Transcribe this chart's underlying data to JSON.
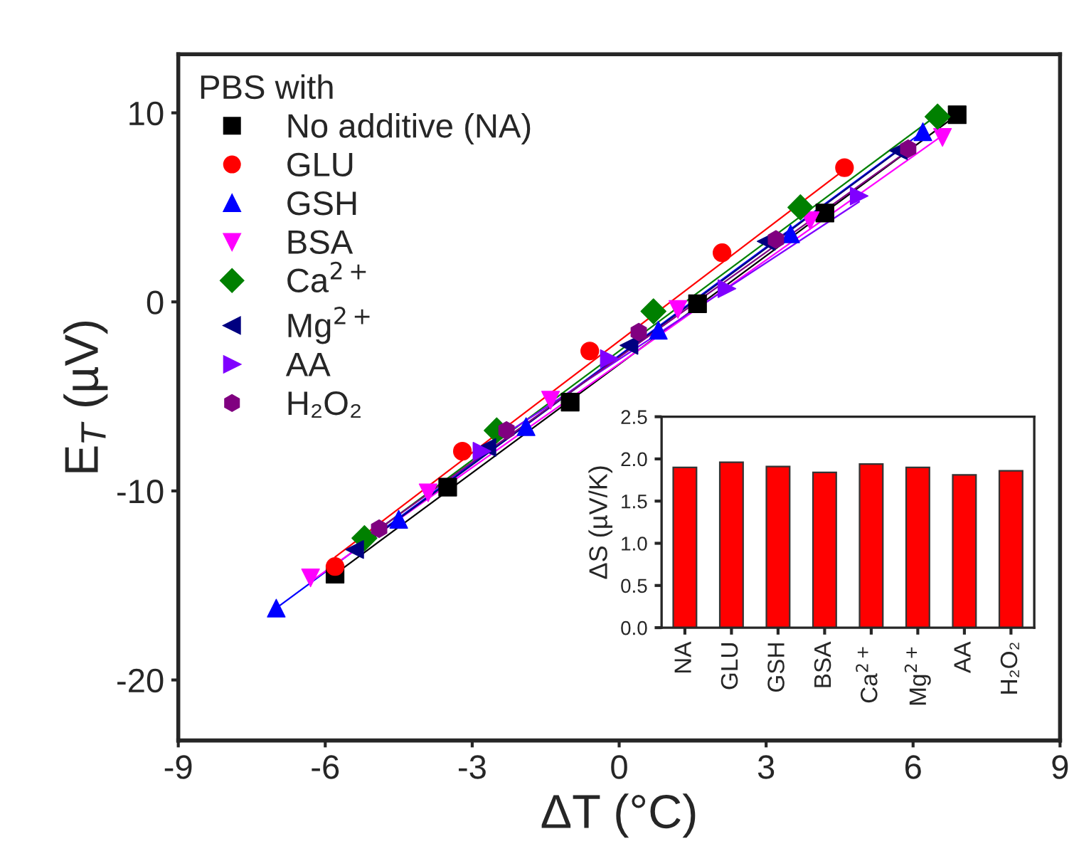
{
  "chart_data": [
    {
      "type": "scatter",
      "xlabel": "ΔT (°C)",
      "ylabel": "E$_{T}$ (µV)",
      "legend_title": "PBS with",
      "legend": "top left",
      "xlim": [
        -9,
        9
      ],
      "ylim": [
        -23.2,
        13.1
      ],
      "xticks": [
        -9,
        -6,
        -3,
        0,
        3,
        6,
        9
      ],
      "yticks": [
        -20,
        -10,
        0,
        10
      ],
      "grid": false,
      "series": [
        {
          "name": "No additive (NA)",
          "color": "#000000",
          "marker": "square",
          "x": [
            -5.8,
            -3.5,
            -1.0,
            1.6,
            4.2,
            6.9
          ],
          "values": [
            -14.4,
            -9.8,
            -5.3,
            -0.1,
            4.7,
            9.9
          ]
        },
        {
          "name": "GLU",
          "color": "#ff0000",
          "marker": "circle",
          "x": [
            -5.8,
            -3.2,
            -0.6,
            2.1,
            4.6
          ],
          "values": [
            -14.0,
            -7.9,
            -2.6,
            2.6,
            7.1
          ]
        },
        {
          "name": "GSH",
          "color": "#0000ff",
          "marker": "triangle",
          "x": [
            -7.0,
            -4.5,
            -1.9,
            0.8,
            3.5,
            6.2
          ],
          "values": [
            -16.2,
            -11.5,
            -6.6,
            -1.5,
            3.6,
            9.0
          ]
        },
        {
          "name": "BSA",
          "color": "#ff00ff",
          "marker": "triangle_down",
          "x": [
            -6.3,
            -3.9,
            -1.4,
            1.2,
            3.9,
            6.6
          ],
          "values": [
            -14.6,
            -10.1,
            -5.2,
            -0.4,
            4.3,
            8.7
          ]
        },
        {
          "name": "Ca$^{2+}$",
          "color": "#008000",
          "marker": "diamond",
          "x": [
            -5.2,
            -2.5,
            0.7,
            3.7,
            6.5
          ],
          "values": [
            -12.5,
            -6.8,
            -0.5,
            5.0,
            9.8
          ]
        },
        {
          "name": "Mg$^{2+}$",
          "color": "#000080",
          "marker": "triangle_left",
          "x": [
            -5.4,
            -2.7,
            0.2,
            3.0,
            5.7
          ],
          "values": [
            -13.1,
            -7.7,
            -2.3,
            3.2,
            8.0
          ]
        },
        {
          "name": "AA",
          "color": "#8000ff",
          "marker": "triangle_right",
          "x": [
            -2.8,
            -0.2,
            2.2,
            4.9
          ],
          "values": [
            -7.9,
            -3.0,
            0.7,
            5.6
          ]
        },
        {
          "name": "H₂O₂",
          "color": "#800080",
          "x": [
            -4.9,
            -2.3,
            0.4,
            3.2,
            5.9
          ],
          "values": [
            -12.0,
            -6.8,
            -1.6,
            3.3,
            8.1
          ]
        },
        {
          "type": "line",
          "color": "#000000",
          "marker": "none",
          "x": [
            -5.8,
            6.9
          ],
          "values": [
            -14.4,
            9.9
          ]
        },
        {
          "type": "line",
          "color": "#ff0000",
          "marker": "none",
          "x": [
            -5.8,
            4.6
          ],
          "values": [
            -13.5,
            7.0
          ]
        },
        {
          "type": "line",
          "color": "#0000ff",
          "marker": "none",
          "x": [
            -7.0,
            6.2
          ],
          "values": [
            -16.2,
            9.0
          ]
        },
        {
          "type": "line",
          "color": "#ff00ff",
          "marker": "none",
          "x": [
            -6.3,
            6.6
          ],
          "values": [
            -14.8,
            8.8
          ]
        },
        {
          "type": "line",
          "color": "#008000",
          "marker": "none",
          "x": [
            -5.2,
            6.5
          ],
          "values": [
            -12.6,
            9.9
          ]
        },
        {
          "type": "line",
          "color": "#000080",
          "marker": "none",
          "x": [
            -5.4,
            5.7
          ],
          "values": [
            -13.2,
            8.0
          ]
        },
        {
          "type": "line",
          "color": "#8000ff",
          "marker": "none",
          "x": [
            -2.8,
            4.9
          ],
          "values": [
            -7.8,
            5.3
          ]
        },
        {
          "type": "line",
          "color": "#800080",
          "marker": "none",
          "x": [
            -4.9,
            5.9
          ],
          "values": [
            -12.0,
            8.0
          ]
        }
      ]
    },
    {
      "type": "bar",
      "ylabel": "ΔS (µV/K)",
      "categories": [
        "NA",
        "GLU",
        "GSH",
        "BSA",
        "Ca$^{2+}$",
        "Mg$^{2+}$",
        "AA",
        "H₂O₂"
      ],
      "values": [
        1.9,
        1.96,
        1.91,
        1.84,
        1.94,
        1.9,
        1.81,
        1.86
      ],
      "color": "#ff0000",
      "ylim": [
        0,
        2.5
      ],
      "yticks": [
        {
          "value": 0,
          "label": "0.0"
        },
        {
          "value": 0.5,
          "label": "0.5"
        },
        {
          "value": 1.0,
          "label": "1.0"
        },
        {
          "value": 1.5,
          "label": "1.5"
        },
        {
          "value": 2.0,
          "label": "2.0"
        },
        {
          "value": 2.5,
          "label": "2.5"
        }
      ],
      "grid": false
    }
  ]
}
